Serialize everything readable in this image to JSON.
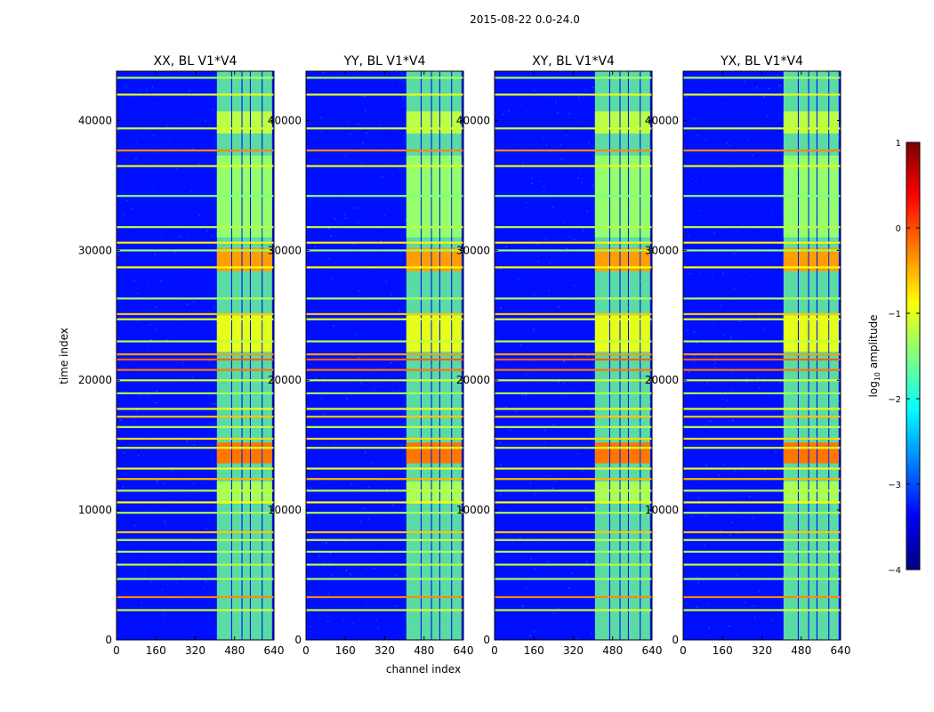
{
  "figure": {
    "suptitle": "2015-08-22 0.0-24.0",
    "xlabel": "channel index",
    "ylabel": "time index"
  },
  "colorbar": {
    "label": "log10 amplitude",
    "label_base": "log",
    "label_sub": "10",
    "label_rest": " amplitude",
    "range": [
      -4,
      1
    ],
    "ticks": [
      1,
      0,
      -1,
      -2,
      -3,
      -4
    ],
    "tick_labels": [
      "1",
      "0",
      "−1",
      "−2",
      "−3",
      "−4"
    ],
    "colormap": "jet",
    "colors": [
      "#00007f",
      "#0000ff",
      "#007fff",
      "#00ffff",
      "#7fff7f",
      "#ffff00",
      "#ff7f00",
      "#ff0000",
      "#7f0000"
    ]
  },
  "chart_data": [
    {
      "type": "heatmap",
      "title": "XX, BL V1*V4",
      "xlabel": "channel index",
      "ylabel": "time index",
      "xlim": [
        0,
        640
      ],
      "ylim": [
        0,
        43800
      ],
      "xticks": [
        0,
        160,
        320,
        480,
        640
      ],
      "yticks": [
        0,
        10000,
        20000,
        30000,
        40000
      ],
      "ytick_labels_visible": true
    },
    {
      "type": "heatmap",
      "title": "YY, BL V1*V4",
      "xlabel": "channel index",
      "ylabel": "",
      "xlim": [
        0,
        640
      ],
      "ylim": [
        0,
        43800
      ],
      "xticks": [
        0,
        160,
        320,
        480,
        640
      ],
      "yticks": [
        0,
        10000,
        20000,
        30000,
        40000
      ],
      "ytick_labels_visible": true
    },
    {
      "type": "heatmap",
      "title": "XY, BL V1*V4",
      "xlabel": "",
      "ylabel": "",
      "xlim": [
        0,
        640
      ],
      "ylim": [
        0,
        43800
      ],
      "xticks": [
        0,
        160,
        320,
        480,
        640
      ],
      "yticks": [
        0,
        10000,
        20000,
        30000,
        40000
      ],
      "ytick_labels_visible": true
    },
    {
      "type": "heatmap",
      "title": "YX, BL V1*V4",
      "xlabel": "",
      "ylabel": "",
      "xlim": [
        0,
        640
      ],
      "ylim": [
        0,
        43800
      ],
      "xticks": [
        0,
        160,
        320,
        480,
        640
      ],
      "yticks": [
        0,
        10000,
        20000,
        30000,
        40000
      ],
      "ytick_labels_visible": true
    }
  ],
  "data_features": {
    "background_log_amplitude": -3.3,
    "signal_channel_bands": [
      [
        408,
        466
      ],
      [
        470,
        508
      ],
      [
        512,
        542
      ],
      [
        546,
        590
      ],
      [
        594,
        632
      ]
    ],
    "signal_log_amplitude": -1.6,
    "bright_time_blocks": [
      {
        "t0": 40700,
        "t1": 39000,
        "level": -1.2
      },
      {
        "t0": 37300,
        "t1": 31000,
        "level": -1.4
      },
      {
        "t0": 30200,
        "t1": 28400,
        "level": -0.4
      },
      {
        "t0": 25000,
        "t1": 22200,
        "level": -1.0
      },
      {
        "t0": 15200,
        "t1": 13600,
        "level": -0.2
      },
      {
        "t0": 12200,
        "t1": 10500,
        "level": -1.3
      }
    ],
    "rfi_time_lines": [
      {
        "t": 43300,
        "level": -1.3
      },
      {
        "t": 42000,
        "level": -1.0
      },
      {
        "t": 39400,
        "level": -1.1
      },
      {
        "t": 37700,
        "level": -0.3
      },
      {
        "t": 36500,
        "level": -1.0
      },
      {
        "t": 34200,
        "level": -1.5
      },
      {
        "t": 31800,
        "level": -1.2
      },
      {
        "t": 30600,
        "level": -0.8
      },
      {
        "t": 30000,
        "level": -1.4
      },
      {
        "t": 28700,
        "level": -0.9
      },
      {
        "t": 26300,
        "level": -1.3
      },
      {
        "t": 25100,
        "level": -0.6
      },
      {
        "t": 24700,
        "level": -1.0
      },
      {
        "t": 23000,
        "level": -1.2
      },
      {
        "t": 22000,
        "level": -0.4
      },
      {
        "t": 21600,
        "level": -0.1
      },
      {
        "t": 20800,
        "level": -0.2
      },
      {
        "t": 20000,
        "level": -1.1
      },
      {
        "t": 19000,
        "level": -1.3
      },
      {
        "t": 17800,
        "level": -1.0
      },
      {
        "t": 17200,
        "level": -0.6
      },
      {
        "t": 16400,
        "level": -1.2
      },
      {
        "t": 15500,
        "level": -0.7
      },
      {
        "t": 14800,
        "level": -1.1
      },
      {
        "t": 13200,
        "level": -1.0
      },
      {
        "t": 12400,
        "level": -0.5
      },
      {
        "t": 11500,
        "level": -1.2
      },
      {
        "t": 10600,
        "level": -0.9
      },
      {
        "t": 9800,
        "level": -1.3
      },
      {
        "t": 8300,
        "level": -0.6
      },
      {
        "t": 7700,
        "level": -1.2
      },
      {
        "t": 6800,
        "level": -1.3
      },
      {
        "t": 5800,
        "level": -1.2
      },
      {
        "t": 4700,
        "level": -1.3
      },
      {
        "t": 3300,
        "level": -0.3
      },
      {
        "t": 2300,
        "level": -1.1
      }
    ]
  }
}
